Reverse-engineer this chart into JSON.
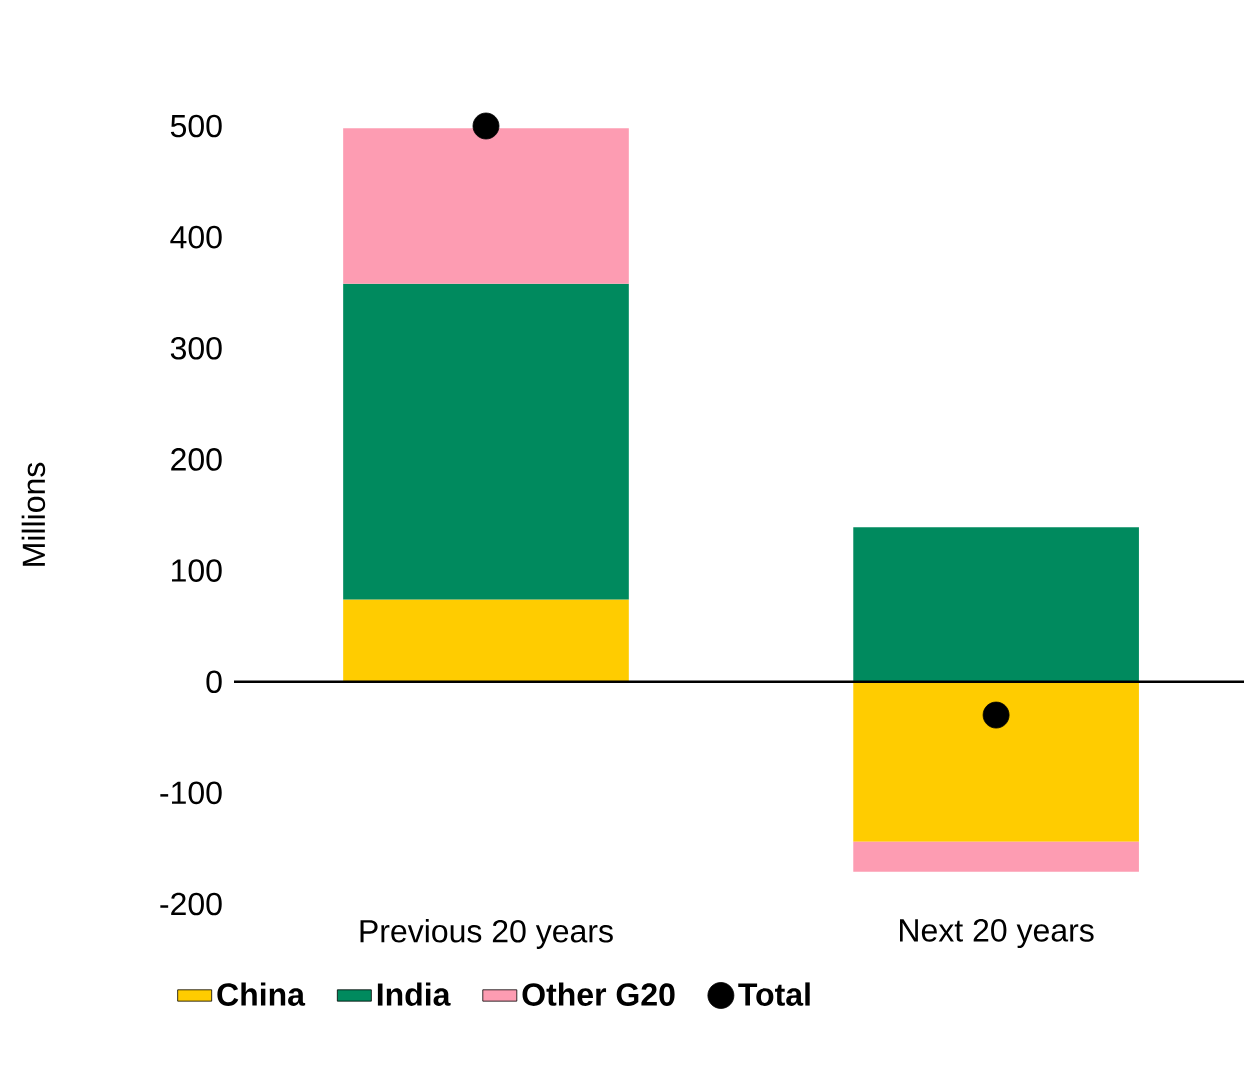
{
  "chart_data": {
    "type": "bar",
    "stacked": true,
    "ylabel": "Millions",
    "categories": [
      "Previous 20 years",
      "Next 20 years"
    ],
    "series": [
      {
        "name": "China",
        "color": "#ffcc00",
        "values": [
          74,
          -144
        ]
      },
      {
        "name": "India",
        "color": "#008a5e",
        "values": [
          284,
          139
        ]
      },
      {
        "name": "Other G20",
        "color": "#fd9cb2",
        "values": [
          140,
          -27
        ]
      },
      {
        "name": "Total",
        "type": "scatter",
        "color": "#000000",
        "marker": "circle",
        "values": [
          500,
          -30
        ]
      }
    ],
    "ylim": [
      -200,
      500
    ],
    "yticks": [
      -200,
      -100,
      0,
      100,
      200,
      300,
      400,
      500
    ],
    "legend": "bottom"
  }
}
